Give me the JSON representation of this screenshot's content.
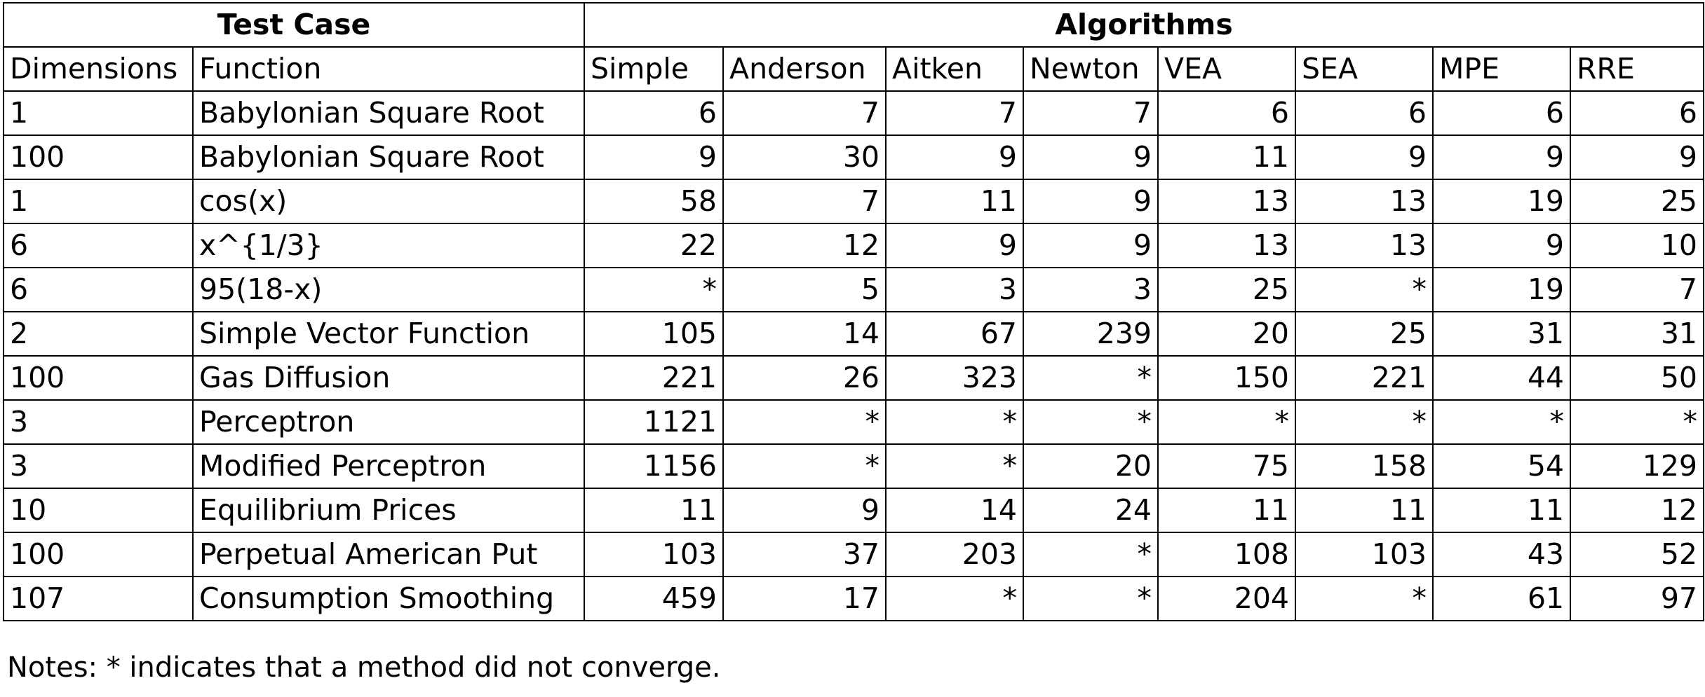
{
  "table": {
    "group_headers": {
      "test_case": "Test Case",
      "algorithms": "Algorithms"
    },
    "columns": {
      "dimensions": "Dimensions",
      "function": "Function",
      "algorithms": [
        "Simple",
        "Anderson",
        "Aitken",
        "Newton",
        "VEA",
        "SEA",
        "MPE",
        "RRE"
      ]
    },
    "rows": [
      {
        "dimensions": "1",
        "function": "Babylonian Square Root",
        "values": [
          "6",
          "7",
          "7",
          "7",
          "6",
          "6",
          "6",
          "6"
        ]
      },
      {
        "dimensions": "100",
        "function": "Babylonian Square Root",
        "values": [
          "9",
          "30",
          "9",
          "9",
          "11",
          "9",
          "9",
          "9"
        ]
      },
      {
        "dimensions": "1",
        "function": "cos(x)",
        "values": [
          "58",
          "7",
          "11",
          "9",
          "13",
          "13",
          "19",
          "25"
        ]
      },
      {
        "dimensions": "6",
        "function": "x^{1/3}",
        "values": [
          "22",
          "12",
          "9",
          "9",
          "13",
          "13",
          "9",
          "10"
        ]
      },
      {
        "dimensions": "6",
        "function": "95(18-x)",
        "values": [
          "*",
          "5",
          "3",
          "3",
          "25",
          "*",
          "19",
          "7"
        ]
      },
      {
        "dimensions": "2",
        "function": "Simple Vector Function",
        "values": [
          "105",
          "14",
          "67",
          "239",
          "20",
          "25",
          "31",
          "31"
        ]
      },
      {
        "dimensions": "100",
        "function": "Gas Diffusion",
        "values": [
          "221",
          "26",
          "323",
          "*",
          "150",
          "221",
          "44",
          "50"
        ]
      },
      {
        "dimensions": "3",
        "function": "Perceptron",
        "values": [
          "1121",
          "*",
          "*",
          "*",
          "*",
          "*",
          "*",
          "*"
        ]
      },
      {
        "dimensions": "3",
        "function": "Modified Perceptron",
        "values": [
          "1156",
          "*",
          "*",
          "20",
          "75",
          "158",
          "54",
          "129"
        ]
      },
      {
        "dimensions": "10",
        "function": "Equilibrium Prices",
        "values": [
          "11",
          "9",
          "14",
          "24",
          "11",
          "11",
          "11",
          "12"
        ]
      },
      {
        "dimensions": "100",
        "function": "Perpetual American Put",
        "values": [
          "103",
          "37",
          "203",
          "*",
          "108",
          "103",
          "43",
          "52"
        ]
      },
      {
        "dimensions": "107",
        "function": "Consumption Smoothing",
        "values": [
          "459",
          "17",
          "*",
          "*",
          "204",
          "*",
          "61",
          "97"
        ]
      }
    ]
  },
  "notes": "Notes: * indicates that a method did not converge."
}
